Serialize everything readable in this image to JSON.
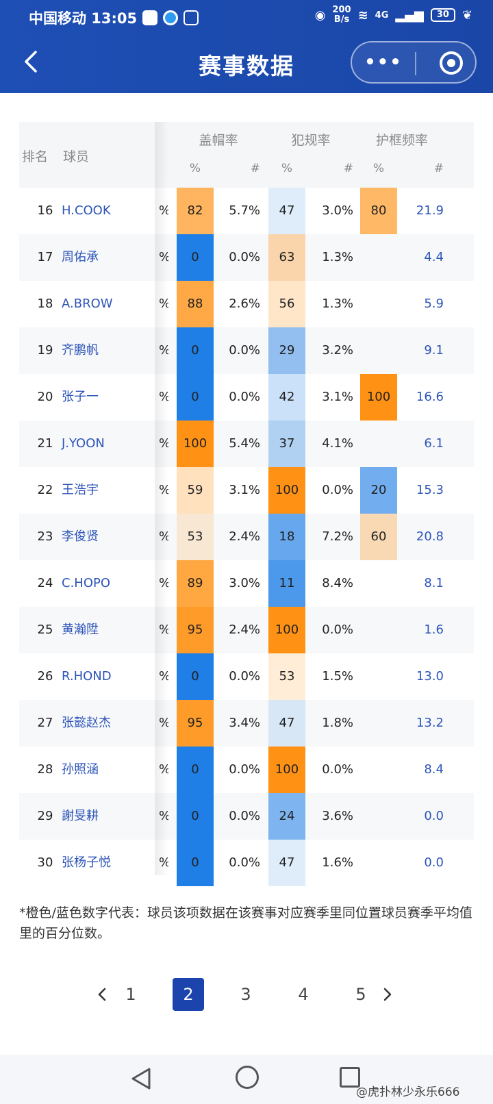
{
  "status_bar": {
    "carrier_time": "中国移动 13:05",
    "speed_value": "200",
    "speed_unit": "B/s",
    "signal": "4G",
    "battery": "30"
  },
  "header": {
    "title": "赛事数据"
  },
  "table": {
    "col_rank": "排名",
    "col_player": "球员",
    "groups": [
      "盖帽率",
      "犯规率",
      "护框频率"
    ],
    "sub_pct": "%",
    "sub_num": "#",
    "rows": [
      {
        "rank": "16",
        "name": "H.COOK",
        "cut": "%",
        "p1": "82",
        "n1": "5.7%",
        "p2": "47",
        "n2": "3.0%",
        "p3": "80",
        "n3": "21.9"
      },
      {
        "rank": "17",
        "name": "周佑承",
        "cut": "%",
        "p1": "0",
        "n1": "0.0%",
        "p2": "63",
        "n2": "1.3%",
        "p3": "",
        "n3": "4.4"
      },
      {
        "rank": "18",
        "name": "A.BROW",
        "cut": "%",
        "p1": "88",
        "n1": "2.6%",
        "p2": "56",
        "n2": "1.3%",
        "p3": "",
        "n3": "5.9"
      },
      {
        "rank": "19",
        "name": "齐鹏帆",
        "cut": "%",
        "p1": "0",
        "n1": "0.0%",
        "p2": "29",
        "n2": "3.2%",
        "p3": "",
        "n3": "9.1"
      },
      {
        "rank": "20",
        "name": "张子一",
        "cut": "%",
        "p1": "0",
        "n1": "0.0%",
        "p2": "42",
        "n2": "3.1%",
        "p3": "100",
        "n3": "16.6"
      },
      {
        "rank": "21",
        "name": "J.YOON",
        "cut": "%",
        "p1": "100",
        "n1": "5.4%",
        "p2": "37",
        "n2": "4.1%",
        "p3": "",
        "n3": "6.1"
      },
      {
        "rank": "22",
        "name": "王浩宇",
        "cut": "%",
        "p1": "59",
        "n1": "3.1%",
        "p2": "100",
        "n2": "0.0%",
        "p3": "20",
        "n3": "15.3"
      },
      {
        "rank": "23",
        "name": "李俊贤",
        "cut": "%",
        "p1": "53",
        "n1": "2.4%",
        "p2": "18",
        "n2": "7.2%",
        "p3": "60",
        "n3": "20.8"
      },
      {
        "rank": "24",
        "name": "C.HOPO",
        "cut": "%",
        "p1": "89",
        "n1": "3.0%",
        "p2": "11",
        "n2": "8.4%",
        "p3": "",
        "n3": "8.1"
      },
      {
        "rank": "25",
        "name": "黄瀚陞",
        "cut": "%",
        "p1": "95",
        "n1": "2.4%",
        "p2": "100",
        "n2": "0.0%",
        "p3": "",
        "n3": "1.6"
      },
      {
        "rank": "26",
        "name": "R.HOND",
        "cut": "%",
        "p1": "0",
        "n1": "0.0%",
        "p2": "53",
        "n2": "1.5%",
        "p3": "",
        "n3": "13.0"
      },
      {
        "rank": "27",
        "name": "张懿赵杰",
        "cut": "%",
        "p1": "95",
        "n1": "3.4%",
        "p2": "47",
        "n2": "1.8%",
        "p3": "",
        "n3": "13.2"
      },
      {
        "rank": "28",
        "name": "孙照涵",
        "cut": "%",
        "p1": "0",
        "n1": "0.0%",
        "p2": "100",
        "n2": "0.0%",
        "p3": "",
        "n3": "8.4"
      },
      {
        "rank": "29",
        "name": "謝旻耕",
        "cut": "%",
        "p1": "0",
        "n1": "0.0%",
        "p2": "24",
        "n2": "3.6%",
        "p3": "",
        "n3": "0.0"
      },
      {
        "rank": "30",
        "name": "张杨子悦",
        "cut": "%",
        "p1": "0",
        "n1": "0.0%",
        "p2": "47",
        "n2": "1.6%",
        "p3": "",
        "n3": "0.0"
      }
    ]
  },
  "colors": {
    "header_bg": "#1e4fb4",
    "name_blue": "#2d54b8",
    "orange_high": "#ff9a1a",
    "blue_low": "#1f7fe6",
    "page_active": "#1b45ad"
  },
  "footnote": "*橙色/蓝色数字代表：球员该项数据在该赛事对应赛季里同位置球员赛季平均值里的百分位数。",
  "pagination": {
    "pages": [
      "1",
      "2",
      "3",
      "4",
      "5"
    ],
    "current": "2"
  },
  "watermark": "@虎扑林少永乐666"
}
